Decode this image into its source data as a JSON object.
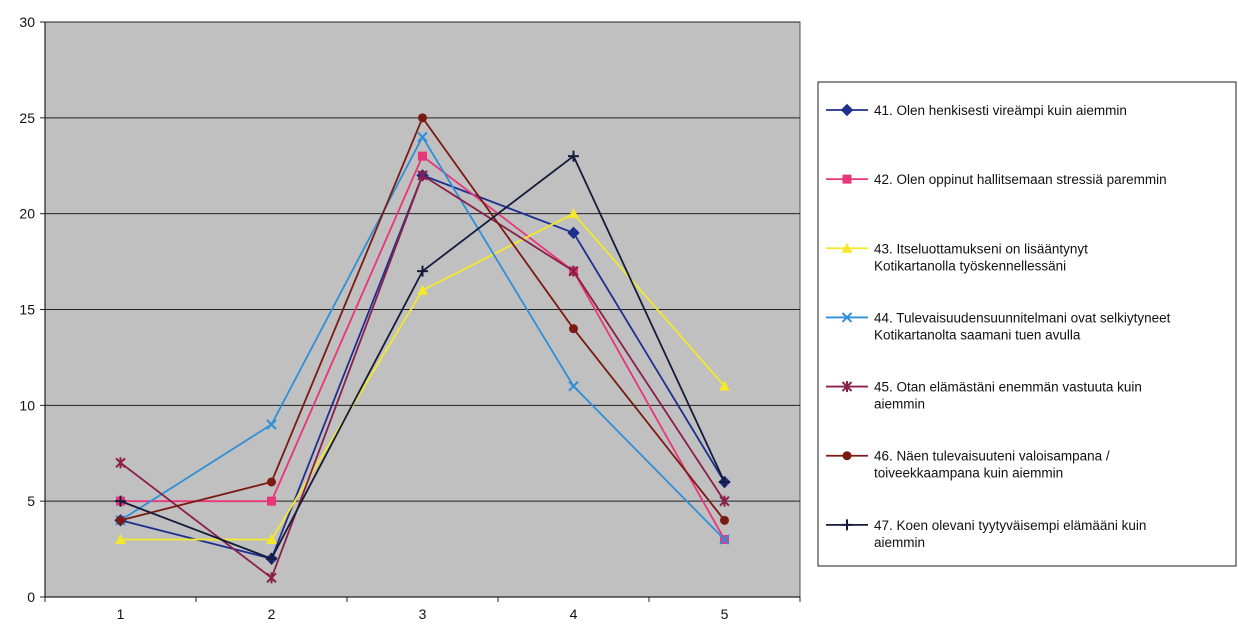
{
  "chart_data": {
    "type": "line",
    "categories": [
      "1",
      "2",
      "3",
      "4",
      "5"
    ],
    "ylim": [
      0,
      30
    ],
    "yticks": [
      0,
      5,
      10,
      15,
      20,
      25,
      30
    ],
    "grid": "horizontal",
    "legend_position": "right",
    "plot_background": "#c0c0c0",
    "series": [
      {
        "name": "41. Olen henkisesti vireämpi kuin aiemmin",
        "color": "#1f2f8f",
        "marker": "diamond",
        "values": [
          4,
          2,
          22,
          19,
          6
        ]
      },
      {
        "name": "42. Olen oppinut hallitsemaan stressiä paremmin",
        "color": "#e8367a",
        "marker": "square",
        "values": [
          5,
          5,
          23,
          17,
          3
        ]
      },
      {
        "name": "43. Itseluottamukseni on lisääntynyt Kotikartanolla työskennellessäni",
        "color": "#f3e82a",
        "marker": "triangle",
        "values": [
          3,
          3,
          16,
          20,
          11
        ]
      },
      {
        "name": "44. Tulevaisuudensuunnitelmani ovat selkiytyneet Kotikartanolta saamani tuen avulla",
        "color": "#2f8fd8",
        "marker": "x",
        "values": [
          4,
          9,
          24,
          11,
          3
        ]
      },
      {
        "name": "45. Otan elämästäni enemmän vastuuta kuin aiemmin",
        "color": "#8a1f4a",
        "marker": "star",
        "values": [
          7,
          1,
          22,
          17,
          5
        ]
      },
      {
        "name": "46. Näen tulevaisuuteni valoisampana / toiveekkaampana kuin aiemmin",
        "color": "#7a1a12",
        "marker": "circle",
        "values": [
          4,
          6,
          25,
          14,
          4
        ]
      },
      {
        "name": "47. Koen olevani tyytyväisempi elämääni kuin aiemmin",
        "color": "#141c3a",
        "marker": "plus",
        "values": [
          5,
          2,
          17,
          23,
          6
        ]
      }
    ]
  }
}
